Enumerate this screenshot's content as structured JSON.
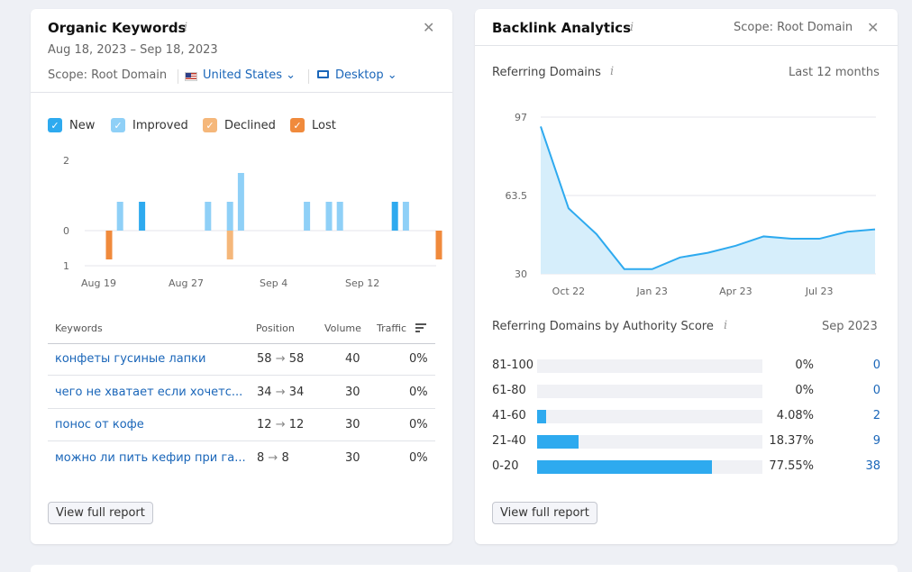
{
  "organic": {
    "title": "Organic Keywords",
    "date_range": "Aug 18, 2023 – Sep 18, 2023",
    "scope_label": "Scope: Root Domain",
    "country": "United States",
    "device": "Desktop",
    "legend": [
      {
        "label": "New",
        "color": "#2eaaef"
      },
      {
        "label": "Improved",
        "color": "#8fd0f7"
      },
      {
        "label": "Declined",
        "color": "#f5b77a"
      },
      {
        "label": "Lost",
        "color": "#f08a3c"
      }
    ],
    "chart": {
      "y_ticks": [
        "2",
        "0",
        "1"
      ],
      "x_ticks": [
        "Aug 19",
        "Aug 27",
        "Sep 4",
        "Sep 12"
      ]
    },
    "table": {
      "headers": {
        "keywords": "Keywords",
        "position": "Position",
        "volume": "Volume",
        "traffic": "Traffic"
      },
      "rows": [
        {
          "keyword": "конфеты гусиные лапки",
          "from": "58",
          "to": "58",
          "volume": "40",
          "traffic": "0%"
        },
        {
          "keyword": "чего не хватает если хочетс...",
          "from": "34",
          "to": "34",
          "volume": "30",
          "traffic": "0%"
        },
        {
          "keyword": "понос от кофе",
          "from": "12",
          "to": "12",
          "volume": "30",
          "traffic": "0%"
        },
        {
          "keyword": "можно ли пить кефир при га...",
          "from": "8",
          "to": "8",
          "volume": "30",
          "traffic": "0%"
        }
      ]
    },
    "button": "View full report"
  },
  "backlink": {
    "title": "Backlink Analytics",
    "scope_label": "Scope: Root Domain",
    "ref_domains_label": "Referring Domains",
    "period": "Last 12 months",
    "authority_label": "Referring Domains by Authority Score",
    "authority_period": "Sep 2023",
    "buckets": [
      {
        "range": "81-100",
        "pct": "0%",
        "fraction": 0,
        "count": "0"
      },
      {
        "range": "61-80",
        "pct": "0%",
        "fraction": 0,
        "count": "0"
      },
      {
        "range": "41-60",
        "pct": "4.08%",
        "fraction": 0.0408,
        "count": "2"
      },
      {
        "range": "21-40",
        "pct": "18.37%",
        "fraction": 0.1837,
        "count": "9"
      },
      {
        "range": "0-20",
        "pct": "77.55%",
        "fraction": 0.7755,
        "count": "38"
      }
    ],
    "button": "View full report"
  },
  "chart_data": [
    {
      "type": "bar",
      "title": "",
      "x": [
        "Aug 19",
        "Aug 20",
        "Aug 21",
        "Aug 22",
        "Aug 23",
        "Aug 24",
        "Aug 25",
        "Aug 26",
        "Aug 27",
        "Aug 28",
        "Aug 29",
        "Aug 30",
        "Aug 31",
        "Sep 1",
        "Sep 2",
        "Sep 3",
        "Sep 4",
        "Sep 5",
        "Sep 6",
        "Sep 7",
        "Sep 8",
        "Sep 9",
        "Sep 10",
        "Sep 11",
        "Sep 12",
        "Sep 13",
        "Sep 14",
        "Sep 15",
        "Sep 16",
        "Sep 17",
        "Sep 18"
      ],
      "x_ticks": [
        "Aug 19",
        "Aug 27",
        "Sep 4",
        "Sep 12"
      ],
      "series": [
        {
          "name": "New",
          "values": [
            0,
            0,
            0,
            1,
            0,
            0,
            0,
            0,
            0,
            0,
            0,
            0,
            0,
            0,
            0,
            0,
            0,
            0,
            0,
            0,
            0,
            0,
            0,
            0,
            0,
            0,
            1,
            0,
            0,
            0,
            0
          ]
        },
        {
          "name": "Improved",
          "values": [
            0,
            1,
            0,
            0,
            0,
            0,
            0,
            0,
            0,
            1,
            0,
            1,
            2,
            0,
            0,
            0,
            0,
            0,
            1,
            0,
            1,
            1,
            0,
            0,
            0,
            0,
            0,
            1,
            0,
            0,
            0
          ]
        },
        {
          "name": "Declined",
          "values": [
            0,
            0,
            0,
            0,
            0,
            0,
            0,
            0,
            0,
            0,
            0,
            -1,
            0,
            0,
            0,
            0,
            0,
            0,
            0,
            0,
            0,
            0,
            0,
            0,
            0,
            0,
            0,
            0,
            0,
            0,
            0
          ]
        },
        {
          "name": "Lost",
          "values": [
            -1,
            0,
            0,
            0,
            0,
            0,
            0,
            0,
            0,
            0,
            0,
            0,
            0,
            0,
            0,
            0,
            0,
            0,
            0,
            0,
            0,
            0,
            0,
            0,
            0,
            0,
            0,
            0,
            0,
            0,
            -1
          ]
        }
      ],
      "ylim": [
        -1,
        2
      ]
    },
    {
      "type": "area",
      "title": "Referring Domains",
      "x": [
        "Sep 22",
        "Oct 22",
        "Nov 22",
        "Dec 22",
        "Jan 23",
        "Feb 23",
        "Mar 23",
        "Apr 23",
        "May 23",
        "Jun 23",
        "Jul 23",
        "Aug 23",
        "Sep 23"
      ],
      "x_ticks": [
        "Oct 22",
        "Jan 23",
        "Apr 23",
        "Jul 23"
      ],
      "y_ticks": [
        30,
        63.5,
        97
      ],
      "values": [
        93,
        58,
        47,
        32,
        32,
        37,
        39,
        42,
        46,
        45,
        45,
        48,
        49
      ],
      "ylim": [
        30,
        97
      ]
    }
  ]
}
